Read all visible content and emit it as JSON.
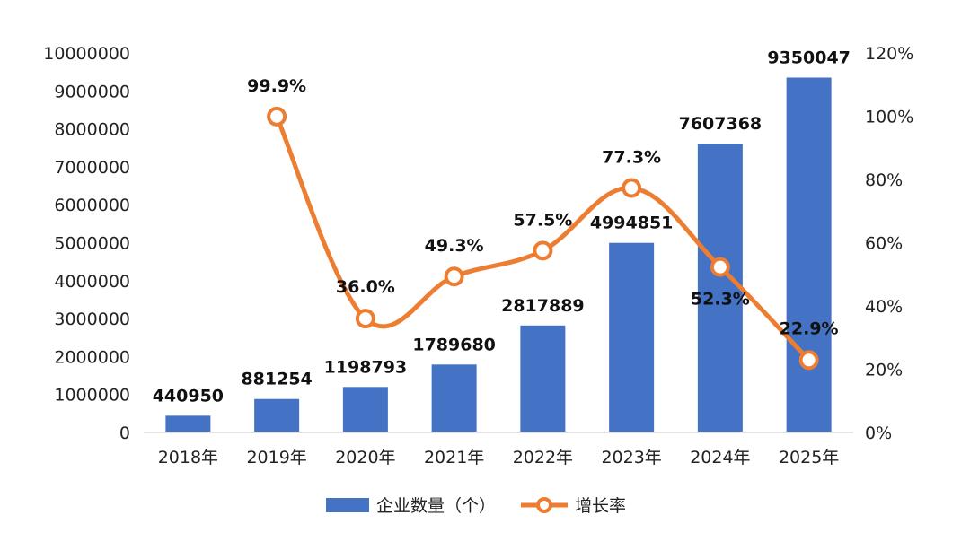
{
  "chart_data": {
    "type": "bar",
    "categories": [
      "2018年",
      "2019年",
      "2020年",
      "2021年",
      "2022年",
      "2023年",
      "2024年",
      "2025年"
    ],
    "series": [
      {
        "name": "企业数量（个）",
        "type": "bar",
        "axis": "left",
        "color": "#4472C4",
        "values": [
          440950,
          881254,
          1198793,
          1789680,
          2817889,
          4994851,
          7607368,
          9350047
        ],
        "labels": [
          "440950",
          "881254",
          "1198793",
          "1789680",
          "2817889",
          "4994851",
          "7607368",
          "9350047"
        ]
      },
      {
        "name": "增长率",
        "type": "line",
        "axis": "right",
        "color": "#ED7D31",
        "values": [
          null,
          99.9,
          36.0,
          49.3,
          57.5,
          77.3,
          52.3,
          22.9
        ],
        "labels": [
          "",
          "99.9%",
          "36.0%",
          "49.3%",
          "57.5%",
          "77.3%",
          "52.3%",
          "22.9%"
        ]
      }
    ],
    "y_left": {
      "range": [
        0,
        10000000
      ],
      "ticks": [
        0,
        1000000,
        2000000,
        3000000,
        4000000,
        5000000,
        6000000,
        7000000,
        8000000,
        9000000,
        10000000
      ],
      "tick_labels": [
        "0",
        "1000000",
        "2000000",
        "3000000",
        "4000000",
        "5000000",
        "6000000",
        "7000000",
        "8000000",
        "9000000",
        "10000000"
      ]
    },
    "y_right": {
      "range": [
        0,
        120
      ],
      "ticks": [
        0,
        20,
        40,
        60,
        80,
        100,
        120
      ],
      "tick_labels": [
        "0%",
        "20%",
        "40%",
        "60%",
        "80%",
        "100%",
        "120%"
      ]
    },
    "grid": false,
    "legend_position": "bottom-center"
  }
}
